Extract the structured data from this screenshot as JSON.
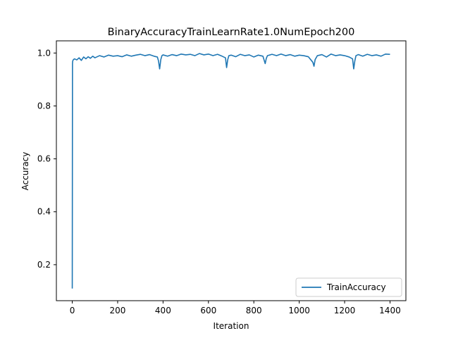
{
  "chart_data": {
    "type": "line",
    "title": "BinaryAccuracyTrainLearnRate1.0NumEpoch200",
    "xlabel": "Iteration",
    "ylabel": "Accuracy",
    "xlim": [
      -70,
      1470
    ],
    "ylim": [
      0.064,
      1.046
    ],
    "xticks": [
      0,
      200,
      400,
      600,
      800,
      1000,
      1200,
      1400
    ],
    "xtick_labels": [
      "0",
      "200",
      "400",
      "600",
      "800",
      "1000",
      "1200",
      "1400"
    ],
    "yticks": [
      0.2,
      0.4,
      0.6,
      0.8,
      1.0
    ],
    "ytick_labels": [
      "0.2",
      "0.4",
      "0.6",
      "0.8",
      "1.0"
    ],
    "grid": false,
    "legend_position": "lower-right",
    "series": [
      {
        "name": "TrainAccuracy",
        "color": "#1f77b4",
        "x": [
          0,
          1,
          2,
          5,
          10,
          20,
          30,
          40,
          50,
          60,
          70,
          80,
          90,
          100,
          120,
          140,
          160,
          180,
          200,
          220,
          240,
          260,
          280,
          300,
          320,
          340,
          360,
          375,
          380,
          385,
          390,
          395,
          400,
          420,
          440,
          460,
          480,
          500,
          520,
          540,
          560,
          580,
          600,
          620,
          640,
          660,
          675,
          680,
          685,
          690,
          700,
          720,
          740,
          760,
          780,
          800,
          820,
          840,
          850,
          855,
          860,
          880,
          900,
          920,
          940,
          960,
          980,
          1000,
          1020,
          1040,
          1060,
          1065,
          1070,
          1080,
          1100,
          1120,
          1140,
          1160,
          1180,
          1200,
          1220,
          1235,
          1240,
          1245,
          1250,
          1260,
          1280,
          1300,
          1320,
          1340,
          1360,
          1380,
          1400
        ],
        "values": [
          0.11,
          0.96,
          0.97,
          0.975,
          0.978,
          0.974,
          0.982,
          0.972,
          0.985,
          0.978,
          0.986,
          0.98,
          0.988,
          0.982,
          0.99,
          0.985,
          0.992,
          0.988,
          0.99,
          0.986,
          0.993,
          0.988,
          0.992,
          0.995,
          0.99,
          0.994,
          0.988,
          0.985,
          0.97,
          0.94,
          0.975,
          0.99,
          0.993,
          0.988,
          0.994,
          0.99,
          0.996,
          0.993,
          0.995,
          0.99,
          0.998,
          0.993,
          0.996,
          0.99,
          0.995,
          0.988,
          0.982,
          0.945,
          0.975,
          0.99,
          0.992,
          0.986,
          0.995,
          0.99,
          0.993,
          0.985,
          0.992,
          0.988,
          0.96,
          0.98,
          0.99,
          0.995,
          0.99,
          0.996,
          0.99,
          0.994,
          0.988,
          0.992,
          0.99,
          0.986,
          0.965,
          0.95,
          0.975,
          0.99,
          0.994,
          0.985,
          0.996,
          0.99,
          0.993,
          0.99,
          0.985,
          0.978,
          0.94,
          0.97,
          0.99,
          0.994,
          0.988,
          0.995,
          0.99,
          0.993,
          0.988,
          0.996,
          0.995
        ]
      }
    ]
  }
}
